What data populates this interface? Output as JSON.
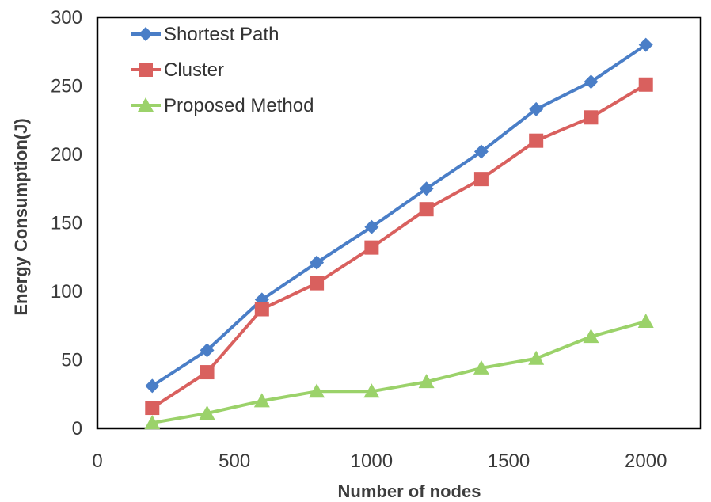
{
  "chart_data": {
    "type": "line",
    "title": "",
    "xlabel": "Number of nodes",
    "ylabel": "Energy Consumption(J)",
    "xlim": [
      0,
      2200
    ],
    "ylim": [
      0,
      300
    ],
    "x_ticks": [
      "0",
      "500",
      "1000",
      "1500",
      "2000"
    ],
    "y_ticks": [
      "0",
      "50",
      "100",
      "150",
      "200",
      "250",
      "300"
    ],
    "grid": false,
    "legend_position": "top-left",
    "x": [
      200,
      400,
      600,
      800,
      1000,
      1200,
      1400,
      1600,
      1800,
      2000
    ],
    "series": [
      {
        "name": "Shortest Path",
        "color": "#4a7ec7",
        "marker": "diamond",
        "values": [
          31,
          57,
          94,
          121,
          147,
          175,
          202,
          233,
          253,
          280
        ]
      },
      {
        "name": "Cluster",
        "color": "#d9605e",
        "marker": "square",
        "values": [
          15,
          41,
          87,
          106,
          132,
          160,
          182,
          210,
          227,
          251
        ]
      },
      {
        "name": "Proposed Method",
        "color": "#9bd26a",
        "marker": "triangle",
        "values": [
          4,
          11,
          20,
          27,
          27,
          34,
          44,
          51,
          67,
          78
        ]
      }
    ]
  }
}
